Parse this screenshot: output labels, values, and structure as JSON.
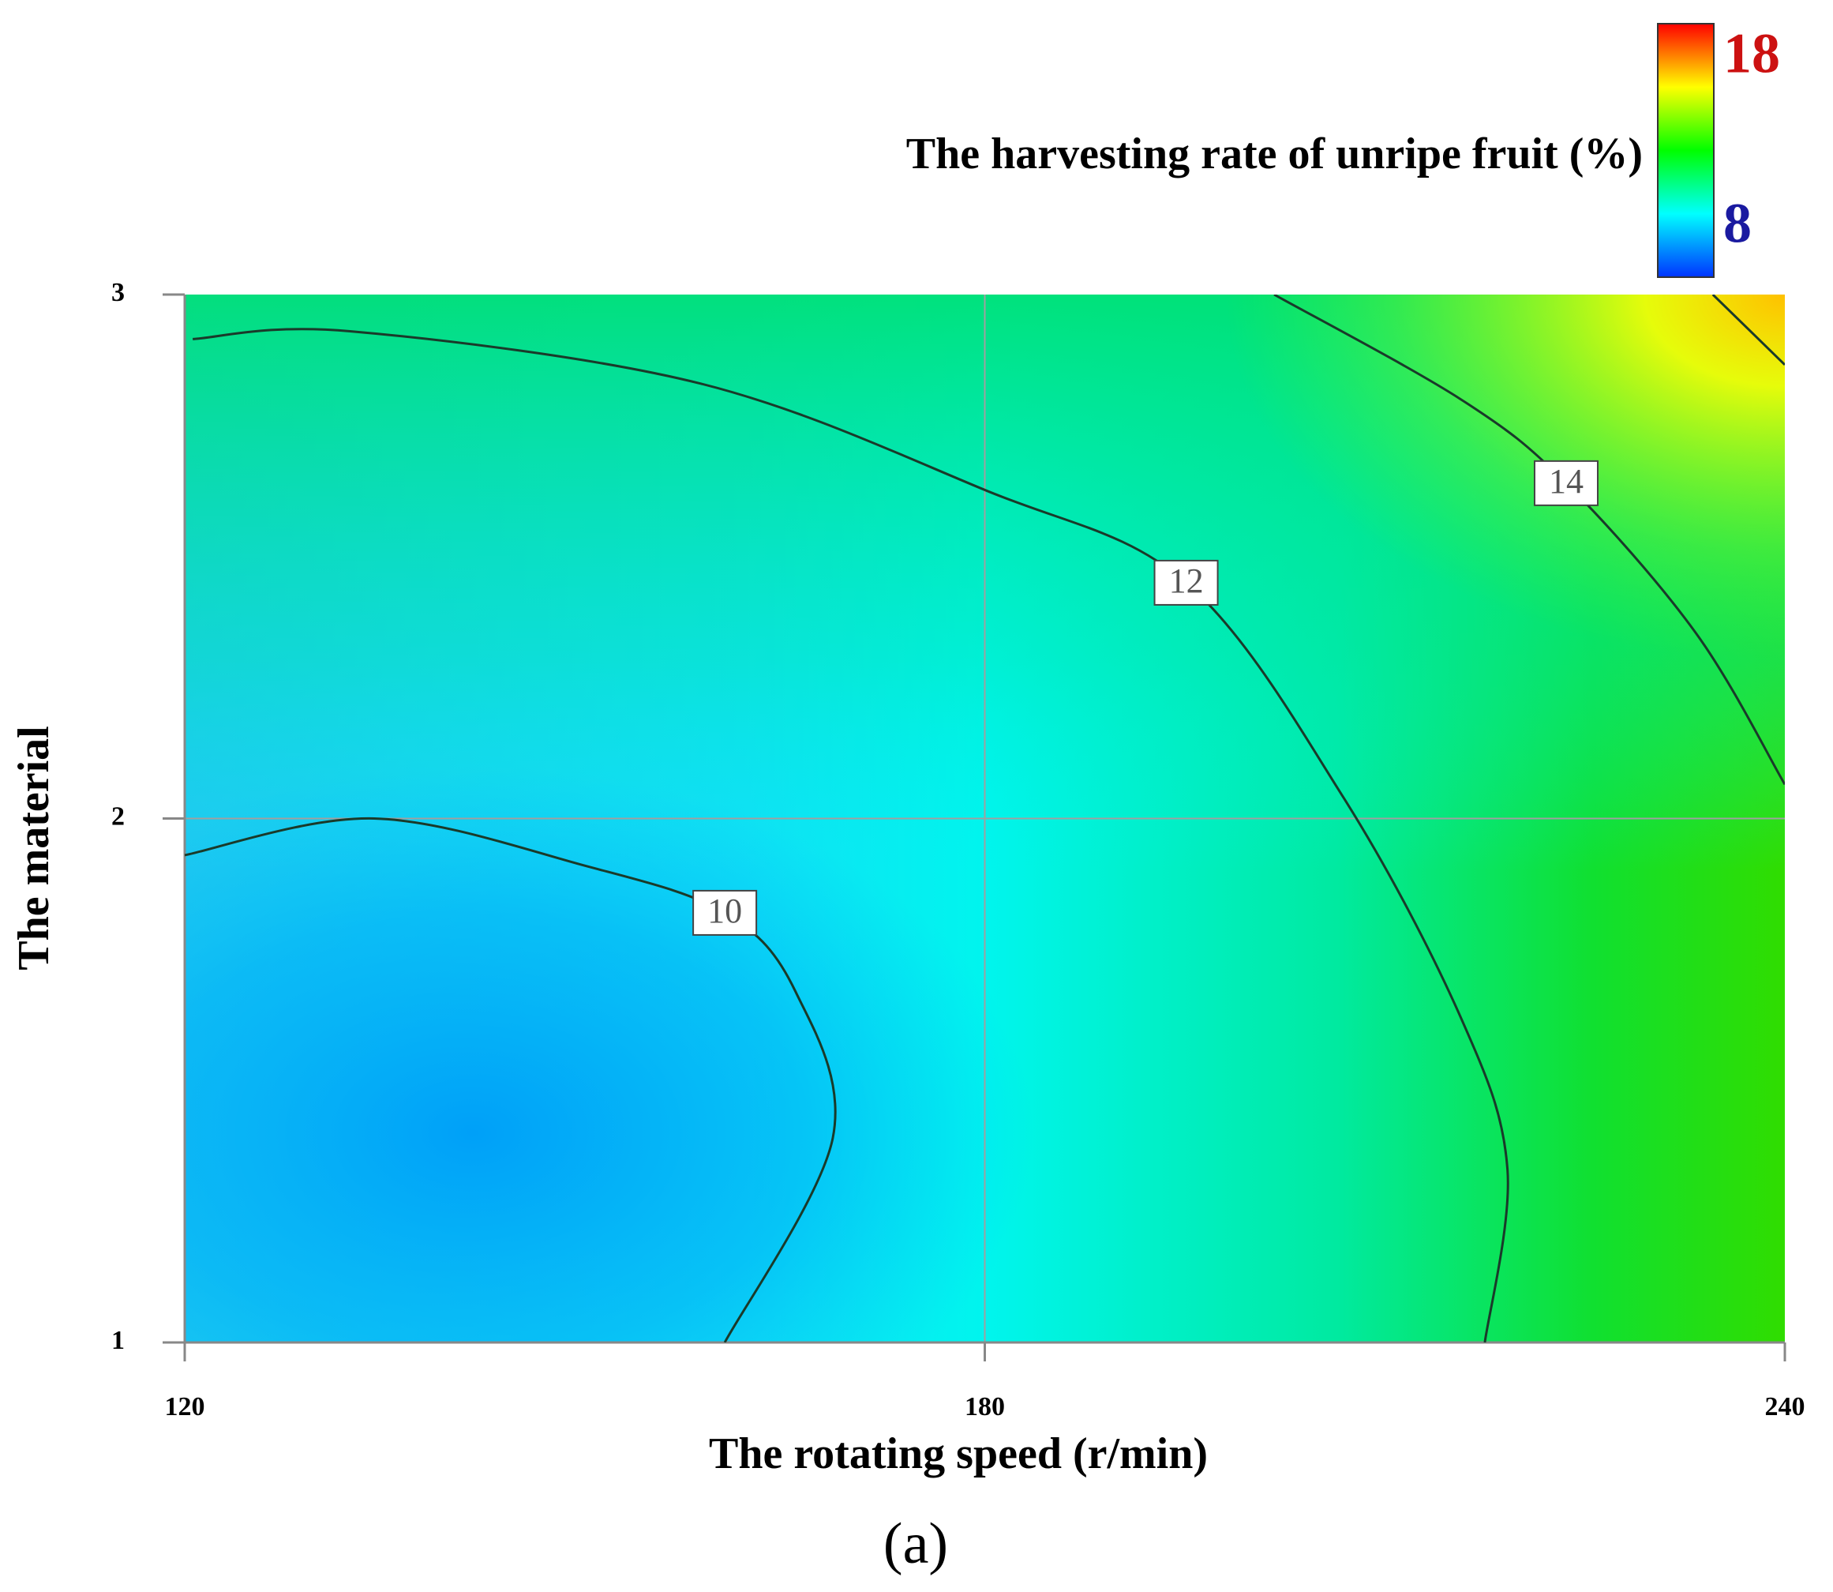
{
  "chart_data": {
    "type": "contour",
    "caption": "(a)",
    "xlabel": "The rotating speed (r/min)",
    "ylabel": "The material",
    "xlim": [
      120,
      240
    ],
    "xticks": [
      120,
      180,
      240
    ],
    "ylim": [
      1,
      3
    ],
    "yticks": [
      1,
      2,
      3
    ],
    "grid": true,
    "colorbar": {
      "label": "The harvesting rate of unripe fruit (%)",
      "lim": [
        8,
        18
      ],
      "ticks": [
        8,
        18
      ],
      "colors": [
        "#0033ff",
        "#00ffff",
        "#00ff00",
        "#ffff00",
        "#ff0000"
      ]
    },
    "contours": [
      {
        "level": 10,
        "show_label": true,
        "x": [
          120,
          134.2,
          150,
          160.5,
          165.8,
          168.6,
          160.5
        ],
        "y": [
          1.93,
          2.0,
          1.91,
          1.82,
          1.67,
          1.39,
          1.0
        ]
      },
      {
        "level": 12,
        "show_label": true,
        "x": [
          120.6,
          132.4,
          158.7,
          180.2,
          195.1,
          206.9,
          215.7,
          219.2,
          217.5
        ],
        "y": [
          2.915,
          2.93,
          2.83,
          2.625,
          2.45,
          2.04,
          1.62,
          1.33,
          1.0
        ]
      },
      {
        "level": 14,
        "show_label": true,
        "x": [
          201.7,
          215.7,
          223.6,
          233.3,
          240
        ],
        "y": [
          3.0,
          2.8,
          2.64,
          2.355,
          2.065
        ]
      },
      {
        "level": 16,
        "show_label": false,
        "x": [
          234.6,
          240
        ],
        "y": [
          3.0,
          2.866
        ]
      }
    ]
  }
}
